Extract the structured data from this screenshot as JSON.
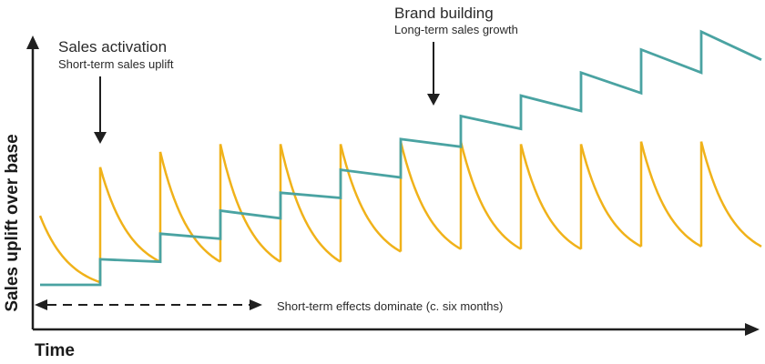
{
  "colors": {
    "short_term": "#F0B21A",
    "long_term": "#4AA3A2",
    "axis": "#1f1f1f",
    "text": "#2a2a2a"
  },
  "axes": {
    "y_label": "Sales uplift over base",
    "x_label": "Time"
  },
  "annotations": {
    "activation": {
      "title": "Sales activation",
      "subtitle": "Short-term sales uplift"
    },
    "brand": {
      "title": "Brand building",
      "subtitle": "Long-term sales growth"
    },
    "short_term_note": "Short-term effects dominate (c. six months)"
  },
  "chart_data": {
    "type": "line",
    "title": "",
    "xlabel": "Time",
    "ylabel": "Sales uplift over base",
    "x_range": [
      0,
      12
    ],
    "y_range": [
      0,
      10
    ],
    "series": [
      {
        "name": "Sales activation (short-term uplift)",
        "pulse_times": [
          1,
          2,
          3,
          4,
          5,
          6,
          7,
          8,
          9,
          10,
          11
        ],
        "peak_levels": [
          4.6,
          5.2,
          5.5,
          5.5,
          5.5,
          5.6,
          5.6,
          5.5,
          5.5,
          5.6,
          5.6
        ],
        "trough_levels": [
          0.1,
          0.9,
          0.9,
          0.9,
          0.9,
          1.3,
          1.4,
          1.4,
          1.4,
          1.5,
          1.5
        ]
      },
      {
        "name": "Brand building (long-term growth)",
        "step_times": [
          1,
          2,
          3,
          4,
          5,
          6,
          7,
          8,
          9,
          10,
          11
        ],
        "levels": [
          0.0,
          1.0,
          2.0,
          2.9,
          3.6,
          4.5,
          5.7,
          6.6,
          7.4,
          8.3,
          9.2,
          9.9
        ],
        "levels_end": [
          0.0,
          0.9,
          1.8,
          2.6,
          3.4,
          4.2,
          5.4,
          6.1,
          6.8,
          7.5,
          8.3,
          8.8
        ]
      }
    ]
  }
}
